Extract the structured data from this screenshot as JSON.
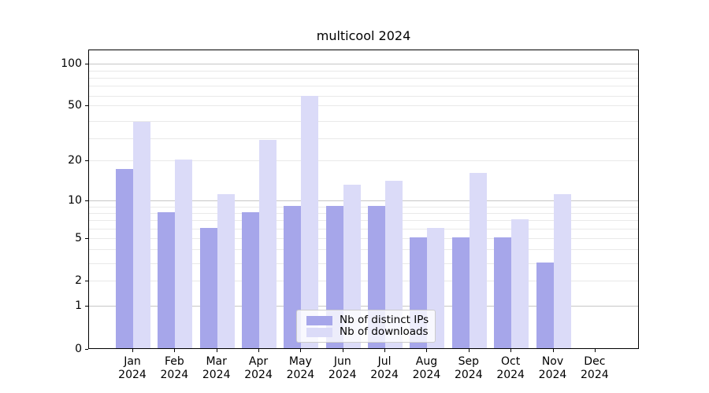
{
  "title": "multicool 2024",
  "year_label": "2024",
  "legend": {
    "items": [
      {
        "label": "Nb of distinct IPs",
        "color": "#a6a6ea"
      },
      {
        "label": "Nb of downloads",
        "color": "#dbdbf8"
      }
    ]
  },
  "y_axis": {
    "tick_labels": [
      "100",
      "50",
      "20",
      "10",
      "5",
      "2",
      "1",
      "0"
    ]
  },
  "x_axis": {
    "months": [
      "Jan",
      "Feb",
      "Mar",
      "Apr",
      "May",
      "Jun",
      "Jul",
      "Aug",
      "Sep",
      "Oct",
      "Nov",
      "Dec"
    ]
  },
  "chart_data": {
    "type": "bar",
    "title": "multicool 2024",
    "categories": [
      "Jan 2024",
      "Feb 2024",
      "Mar 2024",
      "Apr 2024",
      "May 2024",
      "Jun 2024",
      "Jul 2024",
      "Aug 2024",
      "Sep 2024",
      "Oct 2024",
      "Nov 2024",
      "Dec 2024"
    ],
    "series": [
      {
        "name": "Nb of distinct IPs",
        "color": "#a6a6ea",
        "values": [
          17,
          8,
          6,
          8,
          9,
          9,
          9,
          5,
          5,
          5,
          3,
          0
        ]
      },
      {
        "name": "Nb of downloads",
        "color": "#dbdbf8",
        "values": [
          38,
          20,
          11,
          28,
          58,
          13,
          14,
          6,
          16,
          7,
          11,
          0
        ]
      }
    ],
    "xlabel": "",
    "ylabel": "",
    "yscale": "log1p",
    "yticks": [
      0,
      1,
      2,
      5,
      10,
      20,
      50,
      100
    ],
    "ylim": [
      0,
      124
    ],
    "grid": true,
    "grid_major_emphasis": [
      1,
      10,
      100
    ],
    "grid_minor": [
      3,
      4,
      6,
      7,
      8,
      9,
      29,
      39,
      59,
      69,
      79,
      89
    ],
    "legend_position": "lower center",
    "colors": {
      "grid_major": "#c6c6c6",
      "grid_minor": "#e9e9e9",
      "axis": "#000000"
    }
  }
}
